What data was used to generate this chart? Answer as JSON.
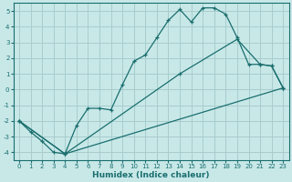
{
  "xlabel": "Humidex (Indice chaleur)",
  "ylabel": "",
  "bg_color": "#c8e8e8",
  "grid_color": "#a8cccc",
  "line_color": "#1a6e6e",
  "xlim": [
    -0.5,
    23.5
  ],
  "ylim": [
    -4.5,
    5.5
  ],
  "xticks": [
    0,
    1,
    2,
    3,
    4,
    5,
    6,
    7,
    8,
    9,
    10,
    11,
    12,
    13,
    14,
    15,
    16,
    17,
    18,
    19,
    20,
    21,
    22,
    23
  ],
  "yticks": [
    -4,
    -3,
    -2,
    -1,
    0,
    1,
    2,
    3,
    4,
    5
  ],
  "line1_x": [
    0,
    1,
    2,
    3,
    4,
    5,
    6,
    7,
    8,
    9,
    10,
    11,
    12,
    13,
    14,
    15,
    16,
    17,
    18,
    19,
    20,
    21,
    22,
    23
  ],
  "line1_y": [
    -2.0,
    -2.7,
    -3.3,
    -4.0,
    -4.1,
    -2.3,
    -1.2,
    -1.2,
    -1.3,
    0.3,
    1.8,
    2.2,
    3.3,
    4.4,
    5.1,
    4.3,
    5.2,
    5.2,
    4.8,
    3.3,
    1.6,
    1.6,
    1.5,
    0.1
  ],
  "line2_x": [
    0,
    4,
    14,
    19,
    21,
    22,
    23
  ],
  "line2_y": [
    -2.0,
    -4.1,
    1.0,
    3.2,
    1.6,
    1.5,
    0.1
  ],
  "line3_x": [
    0,
    4,
    23
  ],
  "line3_y": [
    -2.0,
    -4.1,
    0.1
  ]
}
